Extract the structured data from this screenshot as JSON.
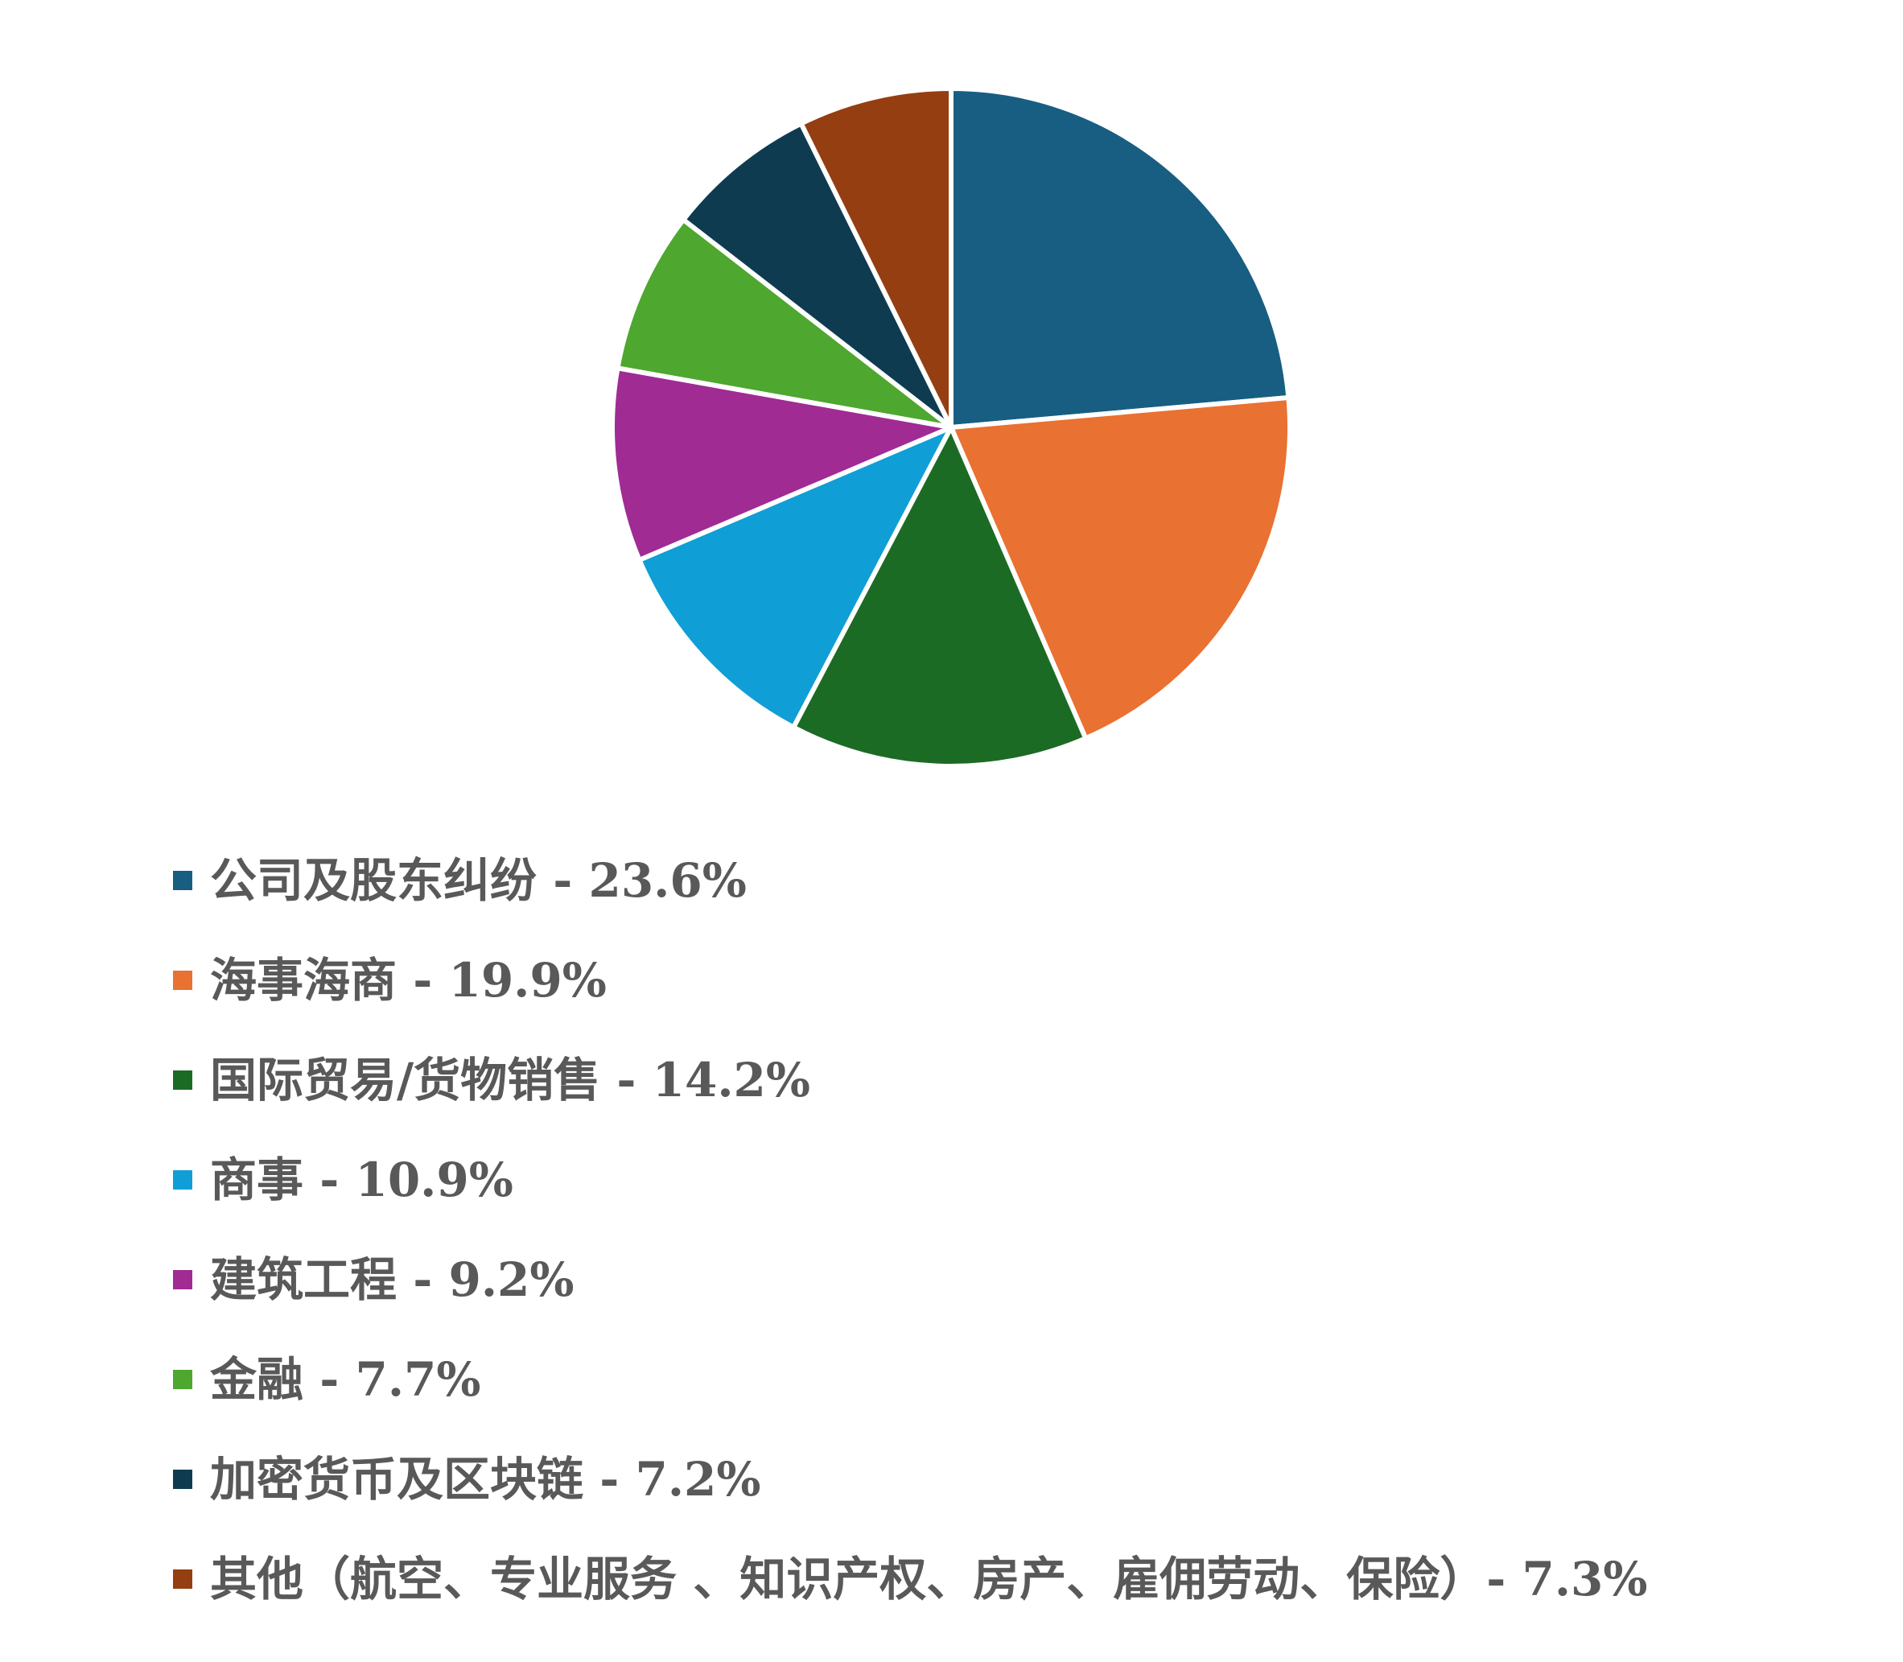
{
  "chart_data": {
    "type": "pie",
    "title": "",
    "slices": [
      {
        "label": "公司及股东纠纷",
        "value": 23.6,
        "legend_text": "公司及股东纠纷 - 23.6%",
        "color": "#175E82"
      },
      {
        "label": "海事海商",
        "value": 19.9,
        "legend_text": "海事海商 - 19.9%",
        "color": "#E97132"
      },
      {
        "label": "国际贸易/货物销售",
        "value": 14.2,
        "legend_text": "国际贸易/货物销售 - 14.2%",
        "color": "#1C6B25"
      },
      {
        "label": "商事",
        "value": 10.9,
        "legend_text": "商事 - 10.9%",
        "color": "#109ED6"
      },
      {
        "label": "建筑工程",
        "value": 9.2,
        "legend_text": "建筑工程 - 9.2%",
        "color": "#A02B93"
      },
      {
        "label": "金融",
        "value": 7.7,
        "legend_text": "金融 - 7.7%",
        "color": "#4EA72E"
      },
      {
        "label": "加密货币及区块链",
        "value": 7.2,
        "legend_text": "加密货币及区块链 - 7.2%",
        "color": "#0F3B51"
      },
      {
        "label": "其他（航空、专业服务 、知识产权、房产、雇佣劳动、保险）",
        "value": 7.3,
        "legend_text": "其他（航空、专业服务 、知识产权、房产、雇佣劳动、保险）- 7.3%",
        "color": "#953E11"
      }
    ],
    "start_angle": "12 o'clock",
    "direction": "clockwise",
    "legend_position": "bottom-left",
    "slice_border_color": "#FFFFFF"
  }
}
